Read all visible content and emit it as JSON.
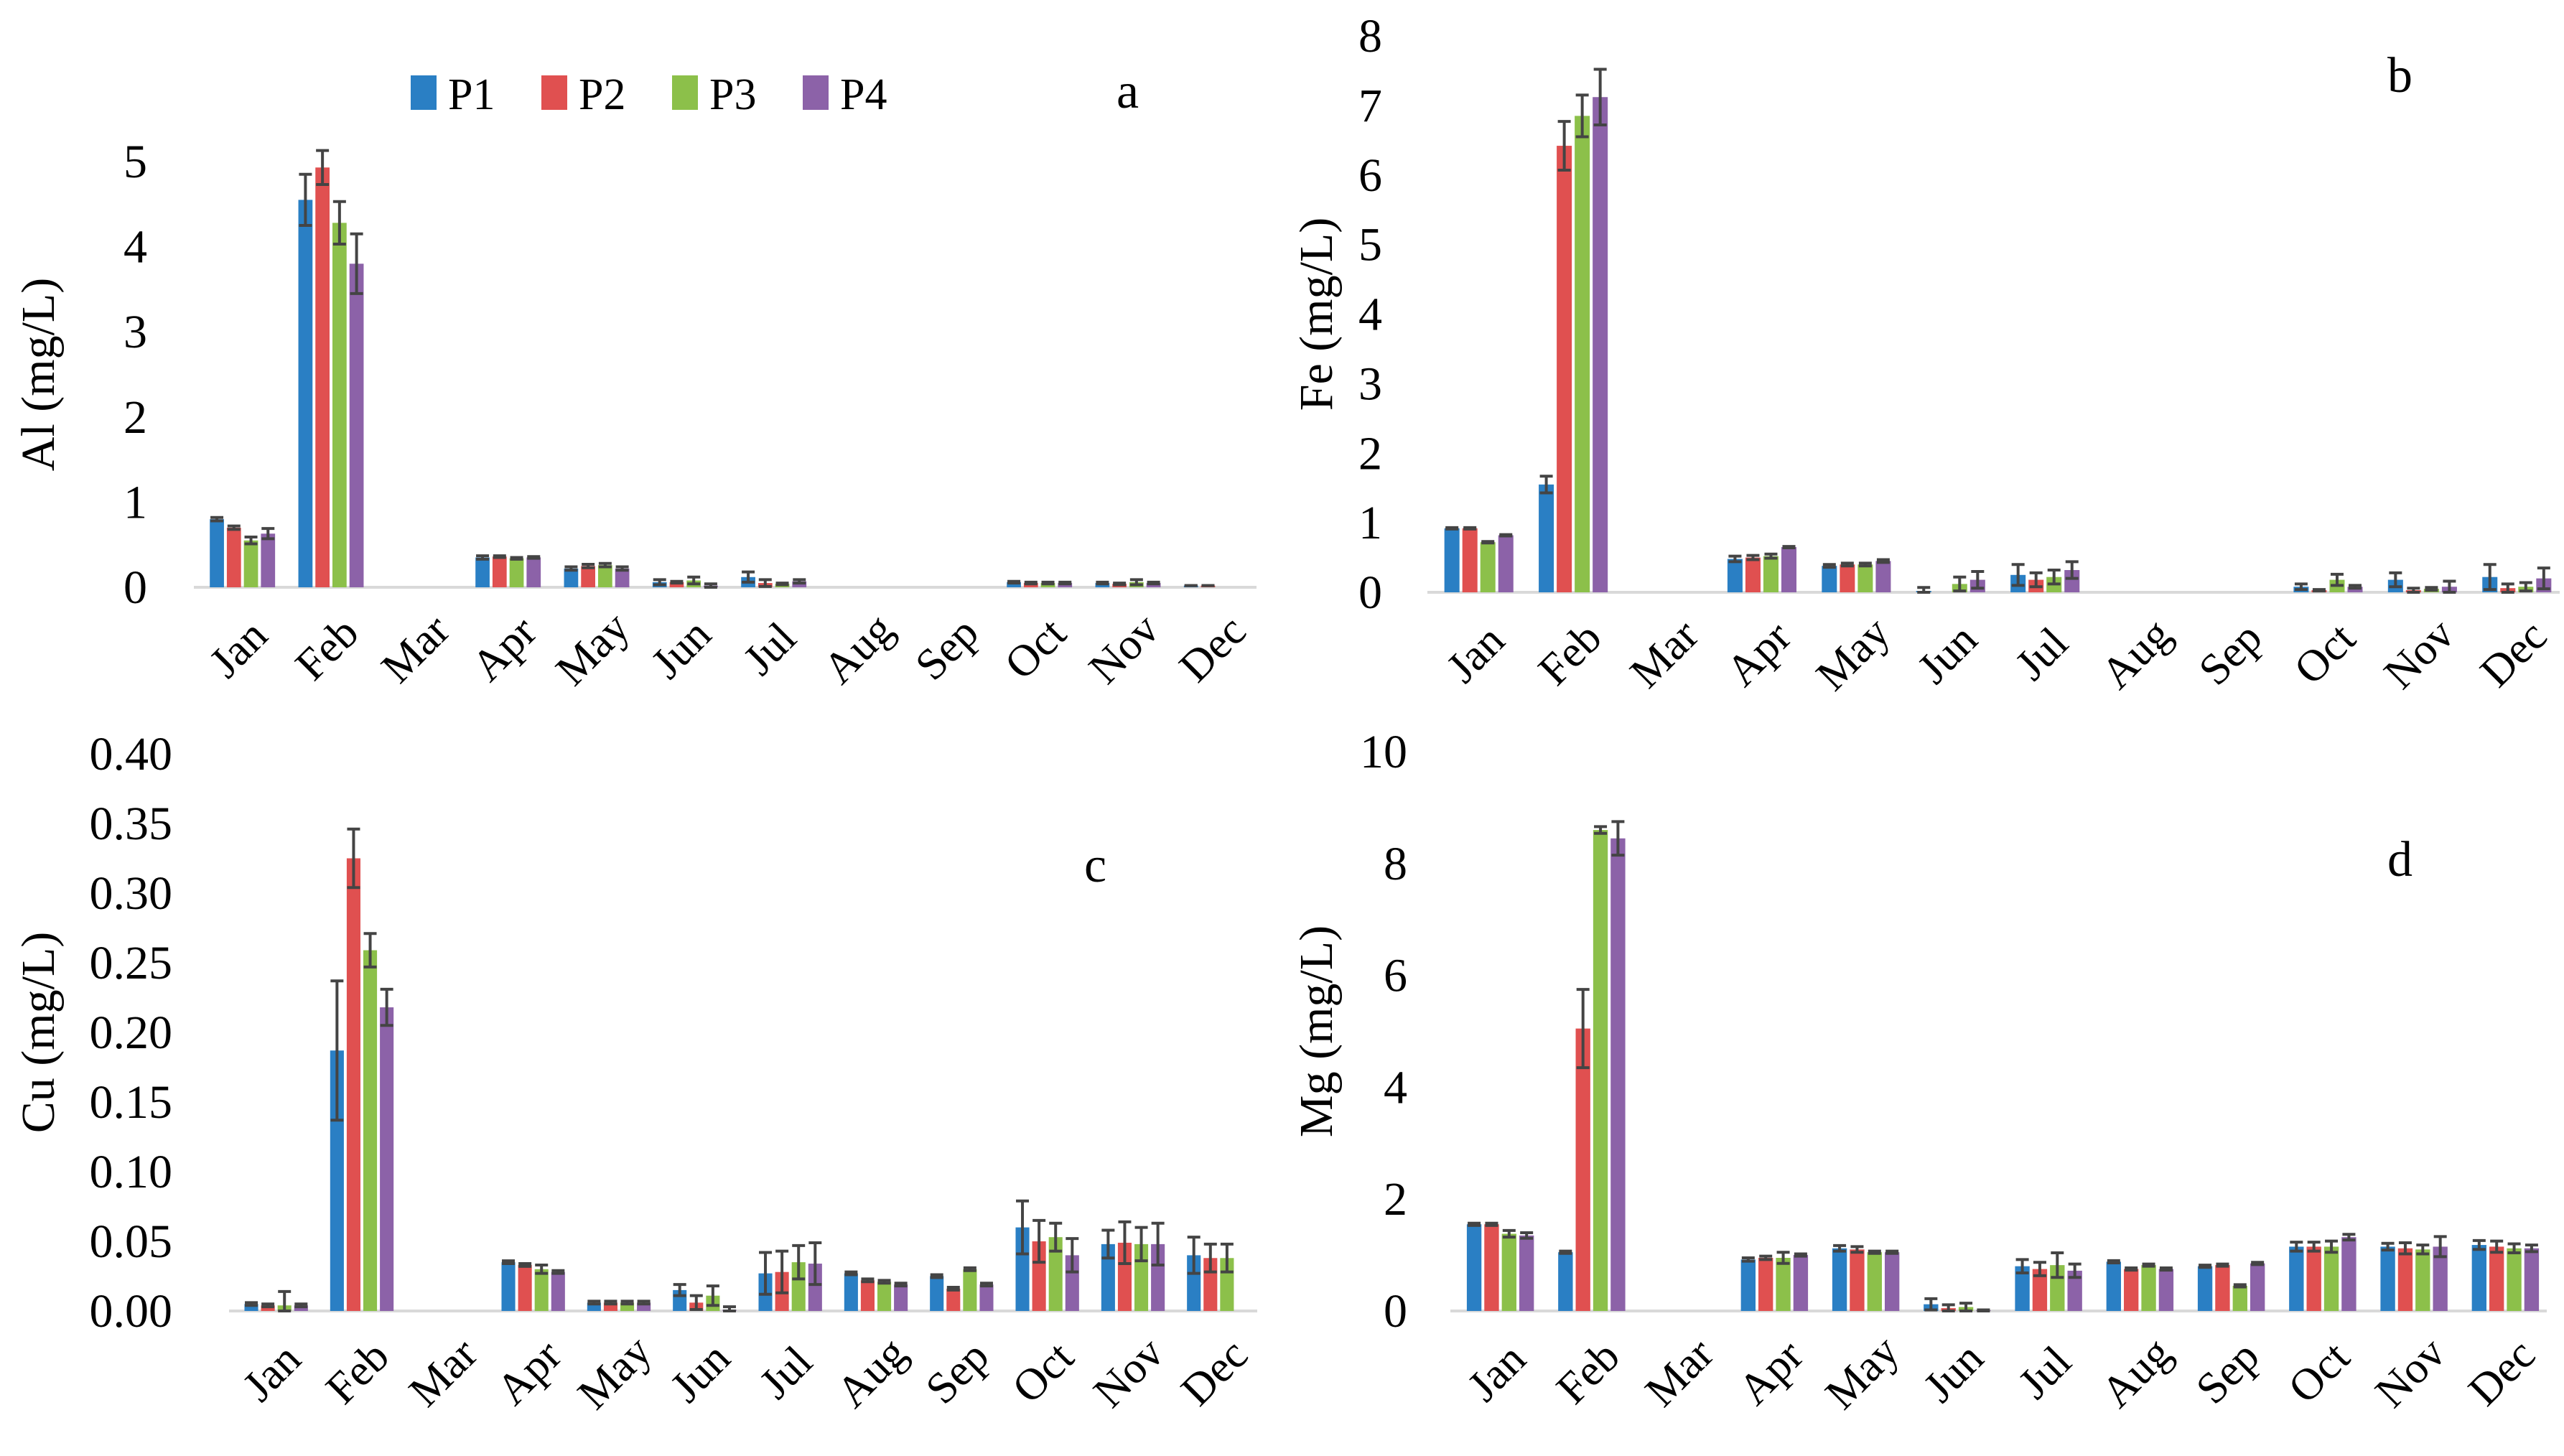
{
  "legend": {
    "items": [
      "P1",
      "P2",
      "P3",
      "P4"
    ],
    "colors": [
      "#2a7fc4",
      "#e05050",
      "#8cc04a",
      "#8c62a8"
    ]
  },
  "error_bar_color": "#444444",
  "chart_data": [
    {
      "type": "bar",
      "panel_label": "a",
      "ylabel": "Al (mg/L)",
      "ylim": [
        0,
        5
      ],
      "yticks": [
        "0",
        "1",
        "2",
        "3",
        "4",
        "5"
      ],
      "categories": [
        "Jan",
        "Feb",
        "Mar",
        "Apr",
        "May",
        "Jun",
        "Jul",
        "Aug",
        "Sep",
        "Oct",
        "Nov",
        "Dec"
      ],
      "series": [
        {
          "name": "P1",
          "values": [
            0.8,
            4.55,
            0,
            0.35,
            0.22,
            0.06,
            0.12,
            0,
            0,
            0.06,
            0.05,
            0.02
          ],
          "errors": [
            0.02,
            0.3,
            0,
            0.02,
            0.02,
            0.03,
            0.06,
            0,
            0,
            0.01,
            0.01,
            0
          ]
        },
        {
          "name": "P2",
          "values": [
            0.7,
            4.93,
            0,
            0.36,
            0.25,
            0.06,
            0.05,
            0,
            0,
            0.05,
            0.04,
            0.02
          ],
          "errors": [
            0.02,
            0.2,
            0,
            0.01,
            0.02,
            0.01,
            0.04,
            0,
            0,
            0.01,
            0.01,
            0
          ]
        },
        {
          "name": "P3",
          "values": [
            0.55,
            4.28,
            0,
            0.34,
            0.26,
            0.08,
            0.04,
            0,
            0,
            0.05,
            0.06,
            0
          ],
          "errors": [
            0.04,
            0.25,
            0,
            0.01,
            0.02,
            0.04,
            0.01,
            0,
            0,
            0.01,
            0.03,
            0
          ]
        },
        {
          "name": "P4",
          "values": [
            0.63,
            3.8,
            0,
            0.35,
            0.22,
            0.02,
            0.07,
            0,
            0,
            0.05,
            0.05,
            0
          ],
          "errors": [
            0.06,
            0.35,
            0,
            0.01,
            0.02,
            0.02,
            0.02,
            0,
            0,
            0.01,
            0.01,
            0
          ]
        }
      ]
    },
    {
      "type": "bar",
      "panel_label": "b",
      "ylabel": "Fe (mg/L)",
      "ylim": [
        0,
        8
      ],
      "yticks": [
        "0",
        "1",
        "2",
        "3",
        "4",
        "5",
        "6",
        "7",
        "8"
      ],
      "categories": [
        "Jan",
        "Feb",
        "Mar",
        "Apr",
        "May",
        "Jun",
        "Jul",
        "Aug",
        "Sep",
        "Oct",
        "Nov",
        "Dec"
      ],
      "series": [
        {
          "name": "P1",
          "values": [
            0.92,
            1.55,
            0,
            0.48,
            0.38,
            0.02,
            0.25,
            0,
            0,
            0.08,
            0.18,
            0.22
          ],
          "errors": [
            0.01,
            0.12,
            0,
            0.04,
            0.02,
            0.05,
            0.15,
            0,
            0,
            0.04,
            0.1,
            0.18
          ]
        },
        {
          "name": "P2",
          "values": [
            0.92,
            6.42,
            0,
            0.5,
            0.4,
            0,
            0.18,
            0,
            0,
            0.03,
            0.03,
            0.06
          ],
          "errors": [
            0.01,
            0.35,
            0,
            0.03,
            0.02,
            0,
            0.1,
            0,
            0,
            0.01,
            0.03,
            0.06
          ]
        },
        {
          "name": "P3",
          "values": [
            0.72,
            6.85,
            0,
            0.52,
            0.4,
            0.12,
            0.22,
            0,
            0,
            0.18,
            0.05,
            0.08
          ],
          "errors": [
            0.01,
            0.3,
            0,
            0.03,
            0.02,
            0.1,
            0.1,
            0,
            0,
            0.08,
            0.02,
            0.06
          ]
        },
        {
          "name": "P4",
          "values": [
            0.82,
            7.12,
            0,
            0.65,
            0.45,
            0.18,
            0.32,
            0,
            0,
            0.08,
            0.08,
            0.2
          ],
          "errors": [
            0.01,
            0.4,
            0,
            0.01,
            0.02,
            0.12,
            0.12,
            0,
            0,
            0.02,
            0.08,
            0.15
          ]
        }
      ]
    },
    {
      "type": "bar",
      "panel_label": "c",
      "ylabel": "Cu (mg/L)",
      "ylim": [
        0,
        0.4
      ],
      "yticks": [
        "0.00",
        "0.05",
        "0.10",
        "0.15",
        "0.20",
        "0.25",
        "0.30",
        "0.35",
        "0.40"
      ],
      "categories": [
        "Jan",
        "Feb",
        "Mar",
        "Apr",
        "May",
        "Jun",
        "Jul",
        "Aug",
        "Sep",
        "Oct",
        "Nov",
        "Dec"
      ],
      "series": [
        {
          "name": "P1",
          "values": [
            0.005,
            0.187,
            0,
            0.035,
            0.006,
            0.015,
            0.027,
            0.027,
            0.025,
            0.06,
            0.048,
            0.04
          ],
          "errors": [
            0.001,
            0.05,
            0,
            0.001,
            0.001,
            0.004,
            0.015,
            0.001,
            0.001,
            0.019,
            0.01,
            0.013
          ]
        },
        {
          "name": "P2",
          "values": [
            0.004,
            0.325,
            0,
            0.033,
            0.006,
            0.006,
            0.028,
            0.022,
            0.016,
            0.05,
            0.049,
            0.038
          ],
          "errors": [
            0.001,
            0.021,
            0,
            0.001,
            0.001,
            0.005,
            0.015,
            0.001,
            0.001,
            0.015,
            0.015,
            0.01
          ]
        },
        {
          "name": "P3",
          "values": [
            0.004,
            0.259,
            0,
            0.03,
            0.006,
            0.011,
            0.035,
            0.021,
            0.03,
            0.053,
            0.048,
            0.038
          ],
          "errors": [
            0.01,
            0.012,
            0,
            0.003,
            0.001,
            0.007,
            0.012,
            0.001,
            0.001,
            0.01,
            0.012,
            0.01
          ]
        },
        {
          "name": "P4",
          "values": [
            0.004,
            0.218,
            0,
            0.028,
            0.006,
            0.001,
            0.034,
            0.019,
            0.019,
            0.04,
            0.048,
            0
          ],
          "errors": [
            0.001,
            0.013,
            0,
            0.001,
            0.001,
            0.002,
            0.015,
            0.001,
            0.001,
            0.012,
            0.015,
            0
          ]
        }
      ]
    },
    {
      "type": "bar",
      "panel_label": "d",
      "ylabel": "Mg (mg/L)",
      "ylim": [
        0,
        10
      ],
      "yticks": [
        "0",
        "2",
        "4",
        "6",
        "8",
        "10"
      ],
      "categories": [
        "Jan",
        "Feb",
        "Mar",
        "Apr",
        "May",
        "Jun",
        "Jul",
        "Aug",
        "Sep",
        "Oct",
        "Nov",
        "Dec"
      ],
      "series": [
        {
          "name": "P1",
          "values": [
            1.55,
            1.05,
            0,
            0.92,
            1.12,
            0.12,
            0.8,
            0.88,
            0.8,
            1.15,
            1.15,
            1.18
          ],
          "errors": [
            0.02,
            0.02,
            0,
            0.03,
            0.05,
            0.1,
            0.12,
            0.02,
            0.02,
            0.08,
            0.06,
            0.08
          ]
        },
        {
          "name": "P2",
          "values": [
            1.55,
            5.05,
            0,
            0.95,
            1.1,
            0.05,
            0.75,
            0.75,
            0.82,
            1.15,
            1.12,
            1.15
          ],
          "errors": [
            0.02,
            0.7,
            0,
            0.03,
            0.05,
            0.06,
            0.12,
            0.02,
            0.02,
            0.08,
            0.1,
            0.1
          ]
        },
        {
          "name": "P3",
          "values": [
            1.38,
            8.6,
            0,
            0.95,
            1.05,
            0.07,
            0.82,
            0.82,
            0.45,
            1.15,
            1.1,
            1.12
          ],
          "errors": [
            0.06,
            0.06,
            0,
            0.1,
            0.02,
            0.07,
            0.22,
            0.02,
            0.02,
            0.1,
            0.08,
            0.08
          ]
        },
        {
          "name": "P4",
          "values": [
            1.35,
            8.45,
            0,
            1.0,
            1.05,
            0.01,
            0.72,
            0.75,
            0.85,
            1.32,
            1.15,
            1.12
          ],
          "errors": [
            0.05,
            0.3,
            0,
            0.02,
            0.02,
            0.01,
            0.12,
            0.02,
            0.02,
            0.05,
            0.18,
            0.06
          ]
        }
      ]
    }
  ]
}
